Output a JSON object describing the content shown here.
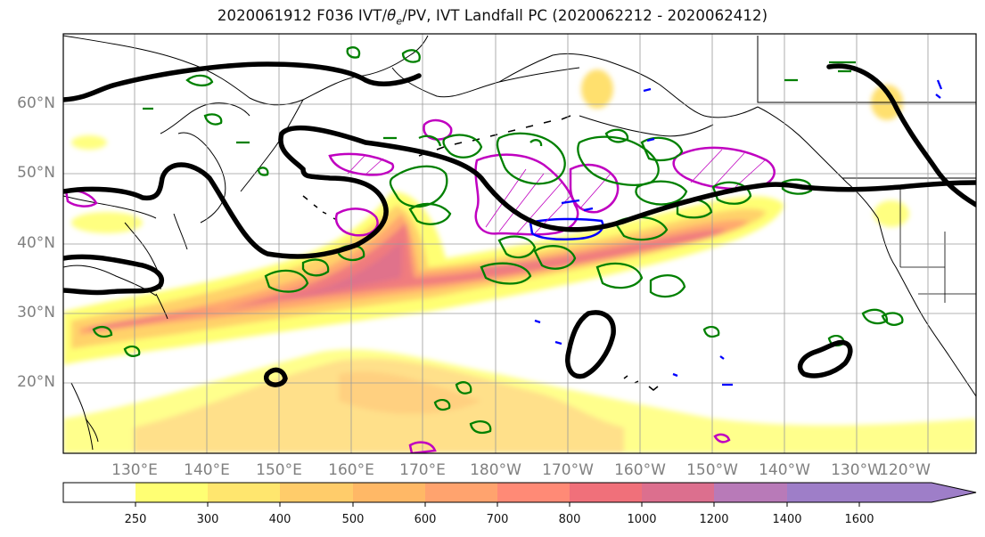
{
  "title": "2020061912 F036 IVT/θe/PV, IVT Landfall PC (2020062212 - 2020062412)",
  "title_parts": {
    "prefix": "2020061912 F036 IVT/",
    "theta": "θ",
    "theta_sub": "e",
    "suffix": "/PV, IVT Landfall PC (2020062212 - 2020062412)"
  },
  "map": {
    "lat_labels": [
      "60°N",
      "50°N",
      "40°N",
      "30°N",
      "20°N"
    ],
    "lon_labels": [
      "130°E",
      "140°E",
      "150°E",
      "160°E",
      "170°E",
      "180°W",
      "170°W",
      "160°W",
      "150°W",
      "140°W",
      "130°W",
      "120°W"
    ],
    "colors": {
      "height_contour": "#000000",
      "theta_contour": "#008000",
      "pv_contour_magenta": "#c000c0",
      "pv_contour_blue": "#0000ff",
      "coastline": "#000000",
      "grid": "#9a9a9a"
    }
  },
  "colorbar": {
    "levels": [
      "250",
      "300",
      "400",
      "500",
      "600",
      "700",
      "800",
      "1000",
      "1200",
      "1400",
      "1600"
    ],
    "colors": [
      "#ffffff",
      "#ffff73",
      "#ffe66e",
      "#ffcc6a",
      "#ffb866",
      "#ffa36e",
      "#ff8a76",
      "#f0707a",
      "#dc6f8e",
      "#b87ab8",
      "#9e7ec8"
    ]
  }
}
